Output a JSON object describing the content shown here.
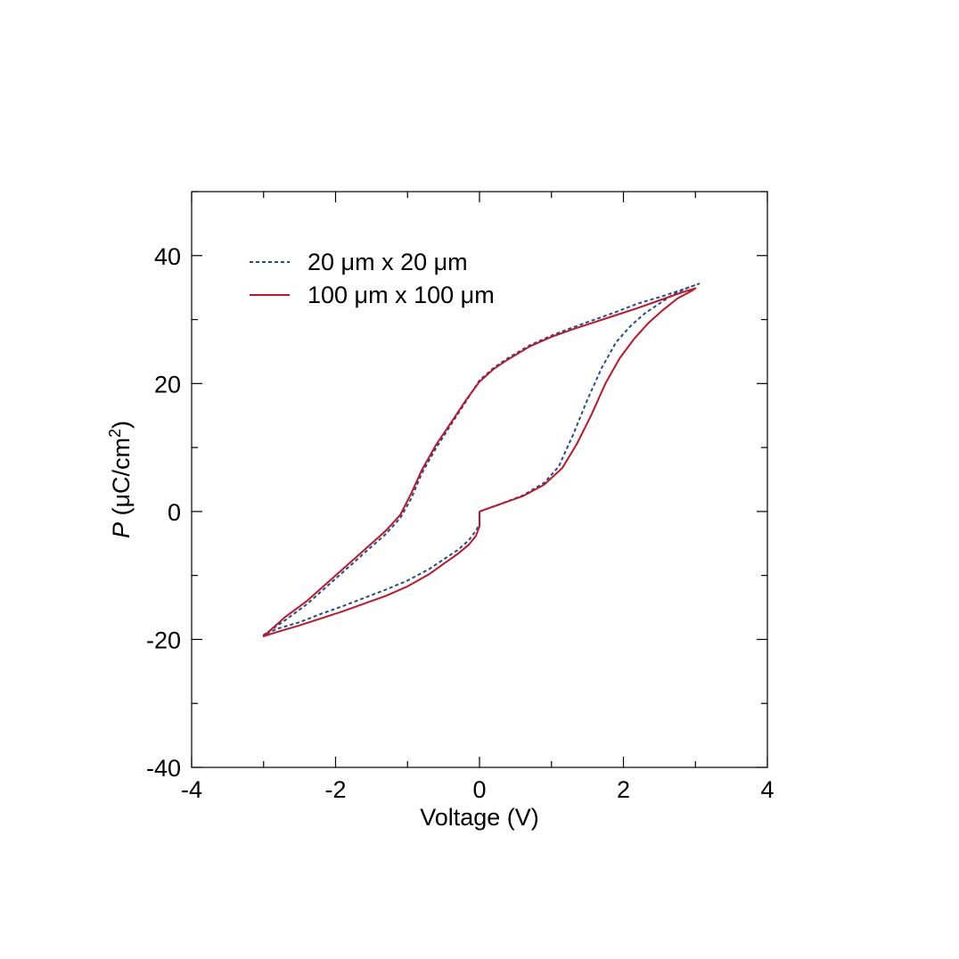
{
  "chart_data": {
    "type": "line",
    "title": "",
    "xlabel": "Voltage (V)",
    "ylabel": {
      "symbol": "P",
      "rest": " (μC/cm",
      "sup": "2",
      "close": ")"
    },
    "xlim": [
      -4,
      4
    ],
    "ylim": [
      -40,
      50
    ],
    "xticks": [
      -4,
      -2,
      0,
      2,
      4
    ],
    "xtick_labels": [
      "-4",
      "-2",
      "0",
      "2",
      "4"
    ],
    "yticks": [
      -40,
      -20,
      0,
      20,
      40
    ],
    "ytick_labels": [
      "-40",
      "-20",
      "0",
      "20",
      "40"
    ],
    "grid": false,
    "legend_position": "top-left",
    "series": [
      {
        "name": "20 μm x 20 μm",
        "color": "#1f4e8c",
        "style": "dotted",
        "x": [
          0.0,
          0.3,
          0.6,
          0.9,
          1.1,
          1.3,
          1.5,
          1.7,
          1.9,
          2.1,
          2.3,
          2.5,
          2.7,
          2.9,
          3.05,
          2.8,
          2.5,
          2.2,
          1.9,
          1.6,
          1.3,
          1.0,
          0.7,
          0.4,
          0.2,
          0.0,
          -0.2,
          -0.4,
          -0.6,
          -0.8,
          -0.95,
          -1.1,
          -1.3,
          -1.6,
          -2.0,
          -2.4,
          -2.7,
          -3.0,
          -2.8,
          -2.5,
          -2.2,
          -1.9,
          -1.6,
          -1.3,
          -1.0,
          -0.7,
          -0.5,
          -0.3,
          -0.15,
          -0.05,
          0.0
        ],
        "y": [
          0.0,
          1.2,
          2.5,
          4.5,
          7.0,
          12.0,
          17.5,
          22.5,
          26.5,
          29.0,
          31.0,
          32.5,
          34.0,
          35.0,
          35.6,
          34.6,
          33.5,
          32.5,
          31.2,
          30.0,
          28.8,
          27.5,
          26.0,
          24.0,
          22.5,
          20.5,
          17.0,
          13.5,
          10.0,
          6.0,
          2.0,
          -1.0,
          -3.5,
          -6.5,
          -10.5,
          -14.5,
          -17.0,
          -19.3,
          -18.3,
          -17.3,
          -16.0,
          -14.8,
          -13.5,
          -12.2,
          -10.8,
          -9.0,
          -7.5,
          -6.0,
          -4.5,
          -3.0,
          -2.0
        ]
      },
      {
        "name": "100 μm x 100 μm",
        "color": "#c0152a",
        "style": "solid",
        "x": [
          0.0,
          0.3,
          0.6,
          0.9,
          1.15,
          1.35,
          1.55,
          1.75,
          1.95,
          2.15,
          2.35,
          2.55,
          2.75,
          2.95,
          3.0,
          2.8,
          2.5,
          2.2,
          1.9,
          1.6,
          1.3,
          1.0,
          0.7,
          0.4,
          0.2,
          0.0,
          -0.2,
          -0.4,
          -0.6,
          -0.8,
          -0.95,
          -1.1,
          -1.3,
          -1.6,
          -2.0,
          -2.4,
          -2.7,
          -3.0,
          -2.8,
          -2.5,
          -2.2,
          -1.9,
          -1.6,
          -1.3,
          -1.0,
          -0.7,
          -0.5,
          -0.3,
          -0.15,
          -0.05,
          0.0,
          0.0
        ],
        "y": [
          0.0,
          1.2,
          2.4,
          4.2,
          6.8,
          10.5,
          15.0,
          20.0,
          24.0,
          27.0,
          29.5,
          31.5,
          33.3,
          34.5,
          34.9,
          34.2,
          33.0,
          31.8,
          30.7,
          29.6,
          28.5,
          27.3,
          25.8,
          23.8,
          22.3,
          20.3,
          17.2,
          13.8,
          10.5,
          6.5,
          2.8,
          -0.5,
          -3.0,
          -6.0,
          -10.0,
          -14.0,
          -16.5,
          -19.5,
          -18.8,
          -17.8,
          -16.7,
          -15.6,
          -14.4,
          -13.2,
          -11.7,
          -9.8,
          -8.2,
          -6.6,
          -5.2,
          -3.8,
          -2.3,
          0.0
        ]
      }
    ]
  }
}
